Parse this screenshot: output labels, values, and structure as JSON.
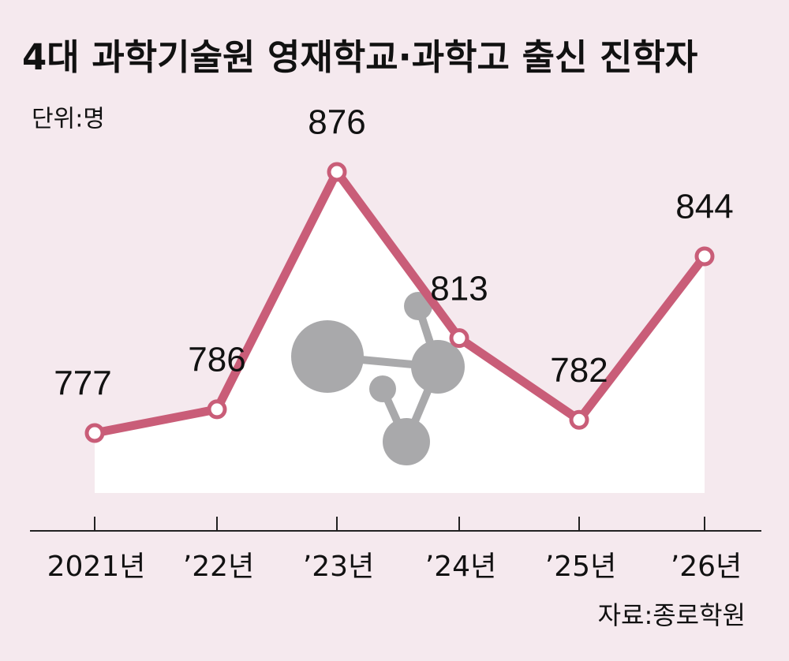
{
  "chart_data": {
    "type": "line",
    "title": "4대 과학기술원 영재학교·과학고 출신 진학자",
    "unit": "단위:명",
    "source": "자료:종로학원",
    "categories": [
      "2021년",
      "’22년",
      "’23년",
      "’24년",
      "’25년",
      "’26년"
    ],
    "values": [
      777,
      786,
      876,
      813,
      782,
      844
    ],
    "color": "#c95d78"
  }
}
